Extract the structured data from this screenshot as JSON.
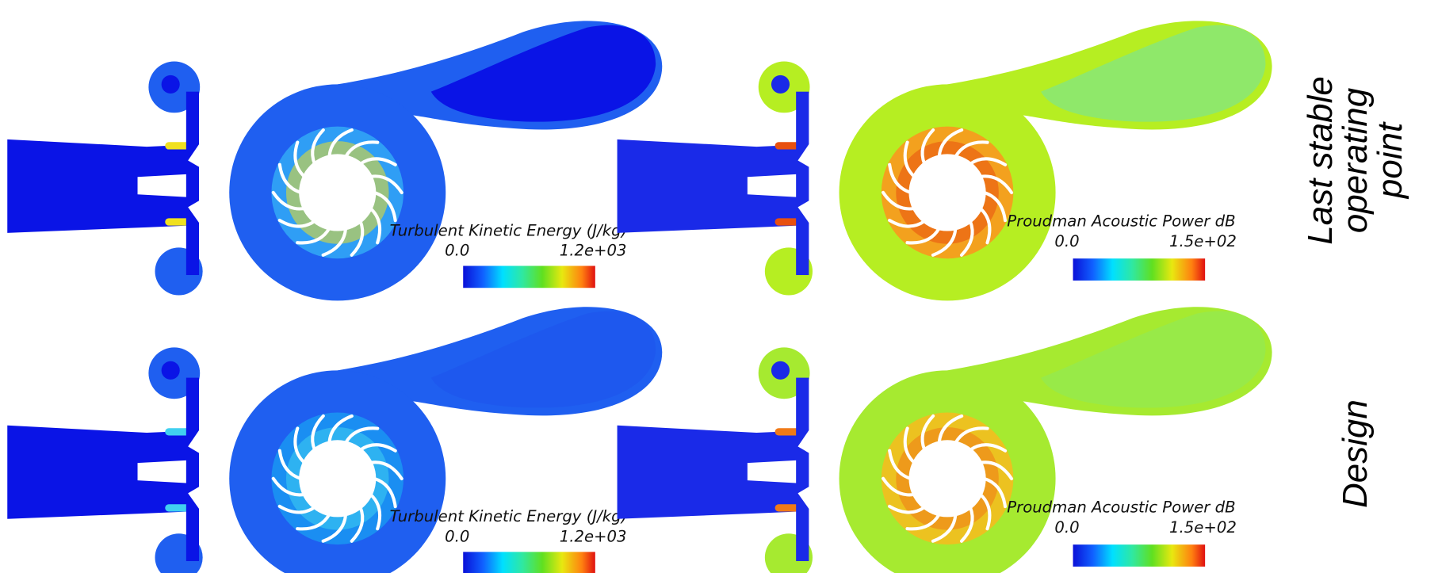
{
  "rows": [
    {
      "label_lines": [
        "Last stable",
        "operating",
        "point"
      ],
      "panels": [
        {
          "colorbar": {
            "title": "Turbulent Kinetic Energy (J/kg)",
            "min": "0.0",
            "max": "1.2e+03"
          }
        },
        {
          "colorbar": {
            "title": "Proudman Acoustic Power dB",
            "min": "0.0",
            "max": "1.5e+02"
          }
        }
      ]
    },
    {
      "label_lines": [
        "Design"
      ],
      "panels": [
        {
          "colorbar": {
            "title": "Turbulent Kinetic Energy (J/kg)",
            "min": "0.0",
            "max": "1.2e+03"
          }
        },
        {
          "colorbar": {
            "title": "Proudman Acoustic Power dB",
            "min": "0.0",
            "max": "1.5e+02"
          }
        }
      ]
    }
  ]
}
